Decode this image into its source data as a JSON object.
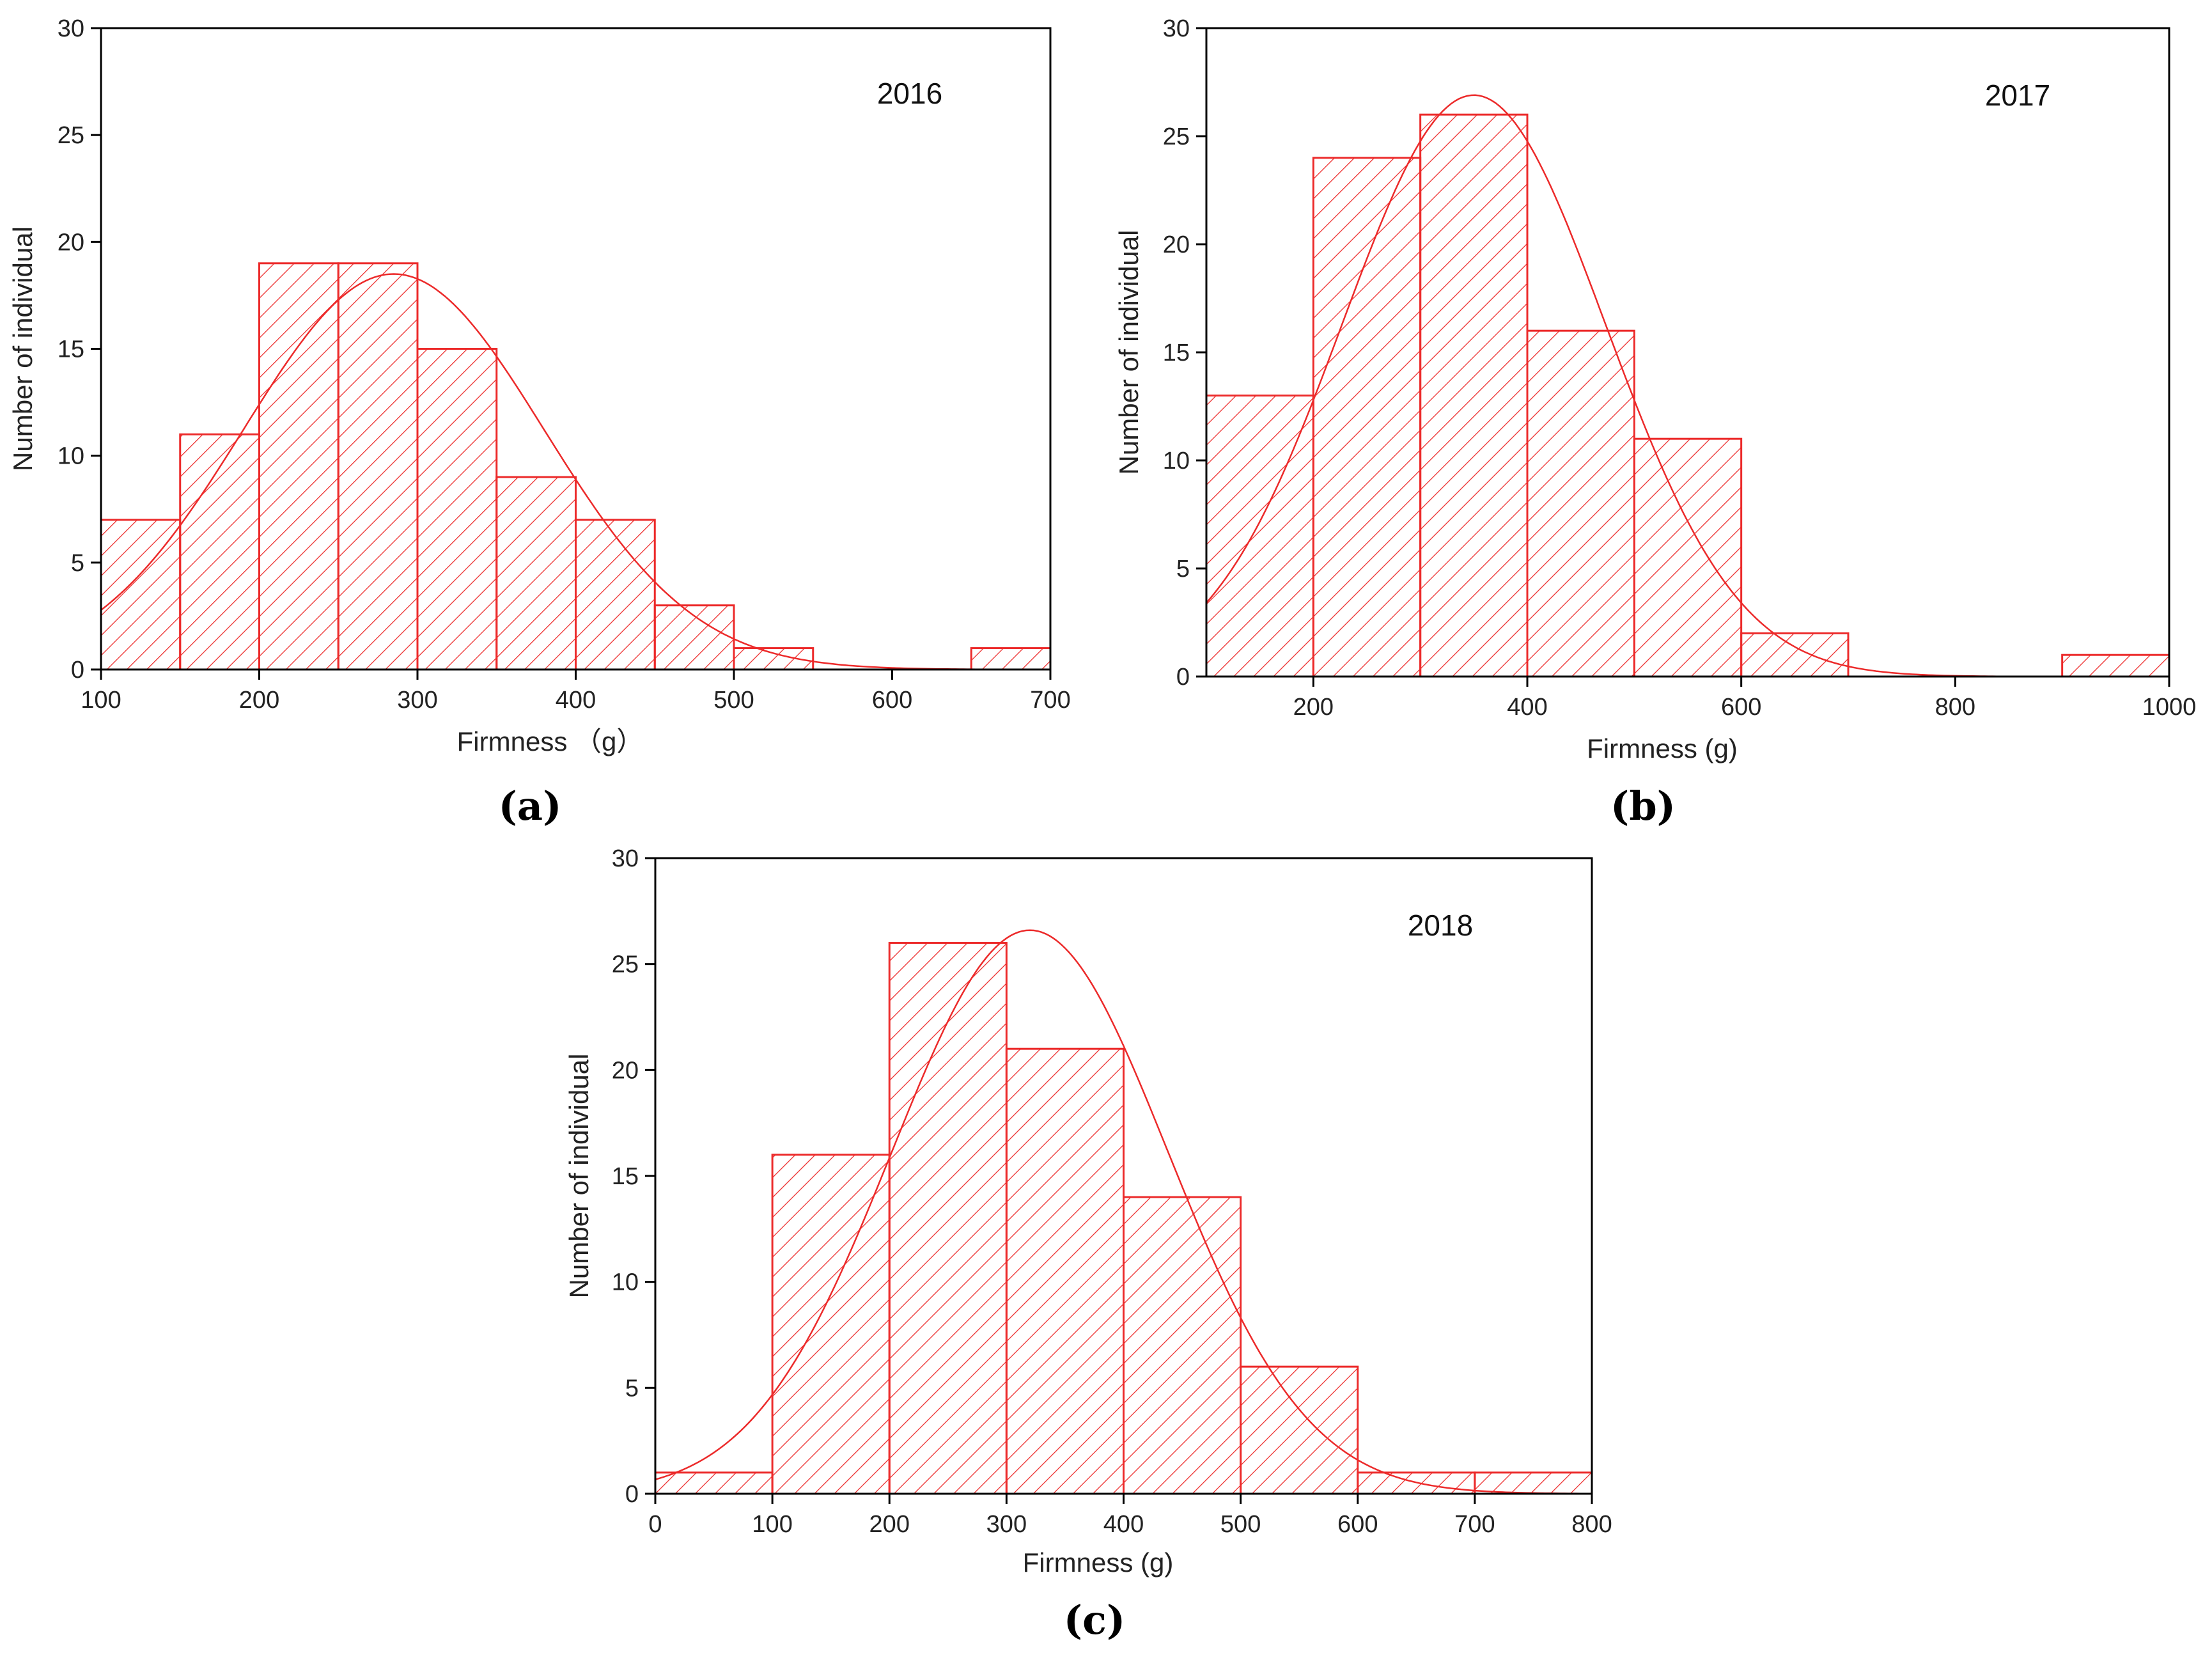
{
  "colors": {
    "bar": "#ec2a2a",
    "hatch": "#ec2a2a",
    "curve": "#ec2a2a",
    "axis": "#000000",
    "text": "#222222"
  },
  "chart_data": [
    {
      "type": "bar",
      "panel_label": "(a)",
      "annotation": "2016",
      "xlabel": "Firmness （g）",
      "ylabel": "Number of individual",
      "xlim": [
        100,
        700
      ],
      "ylim": [
        0,
        30
      ],
      "xticks": [
        100,
        200,
        300,
        400,
        500,
        600,
        700
      ],
      "yticks": [
        0,
        5,
        10,
        15,
        20,
        25,
        30
      ],
      "bin_edges": [
        100,
        150,
        200,
        250,
        300,
        350,
        400,
        450,
        500,
        550,
        600,
        650,
        700
      ],
      "values": [
        7,
        11,
        19,
        19,
        15,
        9,
        7,
        3,
        1,
        0,
        0,
        1
      ],
      "fit_curve": {
        "type": "normal",
        "mean": 285,
        "sd": 95,
        "peak": 18.5
      }
    },
    {
      "type": "bar",
      "panel_label": "(b)",
      "annotation": "2017",
      "xlabel": "Firmness (g)",
      "ylabel": "Number of individual",
      "xlim": [
        100,
        1000
      ],
      "ylim": [
        0,
        30
      ],
      "xticks": [
        200,
        400,
        600,
        800,
        1000
      ],
      "yticks": [
        0,
        5,
        10,
        15,
        20,
        25,
        30
      ],
      "bin_edges": [
        100,
        200,
        300,
        400,
        500,
        600,
        700,
        800,
        900,
        1000
      ],
      "values": [
        13,
        24,
        26,
        16,
        11,
        2,
        0,
        0,
        1
      ],
      "fit_curve": {
        "type": "normal",
        "mean": 350,
        "sd": 123,
        "peak": 26.9
      }
    },
    {
      "type": "bar",
      "panel_label": "(c)",
      "annotation": "2018",
      "xlabel": "Firmness (g)",
      "ylabel": "Number of individual",
      "xlim": [
        0,
        800
      ],
      "ylim": [
        0,
        30
      ],
      "xticks": [
        0,
        100,
        200,
        300,
        400,
        500,
        600,
        700,
        800
      ],
      "yticks": [
        0,
        5,
        10,
        15,
        20,
        25,
        30
      ],
      "bin_edges": [
        0,
        100,
        200,
        300,
        400,
        500,
        600,
        700,
        800
      ],
      "values": [
        1,
        16,
        26,
        21,
        14,
        6,
        1,
        1
      ],
      "fit_curve": {
        "type": "normal",
        "mean": 320,
        "sd": 118,
        "peak": 26.6
      }
    }
  ]
}
